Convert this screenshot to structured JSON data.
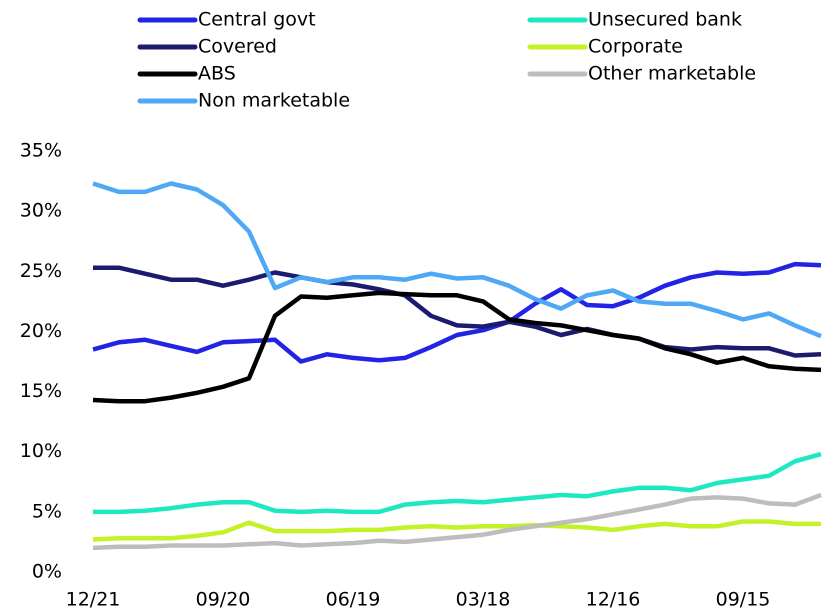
{
  "chart_data": {
    "type": "line",
    "categories": [
      "12/21",
      null,
      null,
      null,
      null,
      "09/20",
      null,
      null,
      null,
      null,
      "06/19",
      null,
      null,
      null,
      null,
      "03/18",
      null,
      null,
      null,
      null,
      "12/16",
      null,
      null,
      null,
      null,
      "09/15",
      null,
      null,
      null
    ],
    "series": [
      {
        "name": "Central govt",
        "color": "#2323e6",
        "values": [
          18.5,
          19.1,
          19.3,
          18.8,
          18.3,
          19.1,
          19.2,
          19.3,
          17.5,
          18.1,
          17.8,
          17.6,
          17.8,
          18.7,
          19.7,
          20.1,
          20.8,
          22.3,
          23.5,
          22.2,
          22.1,
          22.8,
          23.8,
          24.5,
          24.9,
          24.8,
          24.9,
          25.6,
          25.5
        ]
      },
      {
        "name": "Unsecured bank",
        "color": "#1ee8c2",
        "values": [
          5.0,
          5.0,
          5.1,
          5.3,
          5.6,
          5.8,
          5.8,
          5.1,
          5.0,
          5.1,
          5.0,
          5.0,
          5.6,
          5.8,
          5.9,
          5.8,
          6.0,
          6.2,
          6.4,
          6.3,
          6.7,
          7.0,
          7.0,
          6.8,
          7.4,
          7.7,
          8.0,
          9.2,
          9.8
        ]
      },
      {
        "name": "Covered",
        "color": "#1b1b70",
        "values": [
          25.3,
          25.3,
          24.8,
          24.3,
          24.3,
          23.8,
          24.3,
          24.9,
          24.5,
          24.1,
          23.9,
          23.5,
          23.0,
          21.3,
          20.5,
          20.4,
          20.8,
          20.4,
          19.7,
          20.2,
          19.7,
          19.4,
          18.7,
          18.5,
          18.7,
          18.6,
          18.6,
          18.0,
          18.1
        ]
      },
      {
        "name": "Corporate",
        "color": "#c3f226",
        "values": [
          2.7,
          2.8,
          2.8,
          2.8,
          3.0,
          3.3,
          4.1,
          3.4,
          3.4,
          3.4,
          3.5,
          3.5,
          3.7,
          3.8,
          3.7,
          3.8,
          3.8,
          3.9,
          3.8,
          3.7,
          3.5,
          3.8,
          4.0,
          3.8,
          3.8,
          4.2,
          4.2,
          4.0,
          4.0
        ]
      },
      {
        "name": "ABS",
        "color": "#000000",
        "values": [
          14.3,
          14.2,
          14.2,
          14.5,
          14.9,
          15.4,
          16.1,
          21.3,
          22.9,
          22.8,
          23.0,
          23.2,
          23.1,
          23.0,
          23.0,
          22.5,
          21.0,
          20.7,
          20.5,
          20.1,
          19.7,
          19.4,
          18.6,
          18.1,
          17.4,
          17.8,
          17.1,
          16.9,
          16.8
        ]
      },
      {
        "name": "Other marketable",
        "color": "#bdbdbd",
        "values": [
          2.0,
          2.1,
          2.1,
          2.2,
          2.2,
          2.2,
          2.3,
          2.4,
          2.2,
          2.3,
          2.4,
          2.6,
          2.5,
          2.7,
          2.9,
          3.1,
          3.5,
          3.8,
          4.1,
          4.4,
          4.8,
          5.2,
          5.6,
          6.1,
          6.2,
          6.1,
          5.7,
          5.6,
          6.4
        ]
      },
      {
        "name": "Non marketable",
        "color": "#4fa8f5",
        "values": [
          32.3,
          31.6,
          31.6,
          32.3,
          31.8,
          30.5,
          28.3,
          23.6,
          24.5,
          24.1,
          24.5,
          24.5,
          24.3,
          24.8,
          24.4,
          24.5,
          23.8,
          22.7,
          21.9,
          23.0,
          23.4,
          22.5,
          22.3,
          22.3,
          21.7,
          21.0,
          21.5,
          20.5,
          19.6
        ]
      }
    ],
    "ylim": [
      0,
      35
    ],
    "yticks": [
      {
        "value": 0,
        "label": "0%"
      },
      {
        "value": 5,
        "label": "5%"
      },
      {
        "value": 10,
        "label": "10%"
      },
      {
        "value": 15,
        "label": "15%"
      },
      {
        "value": 20,
        "label": "20%"
      },
      {
        "value": 25,
        "label": "25%"
      },
      {
        "value": 30,
        "label": "30%"
      },
      {
        "value": 35,
        "label": "35%"
      }
    ],
    "legend": "top"
  }
}
